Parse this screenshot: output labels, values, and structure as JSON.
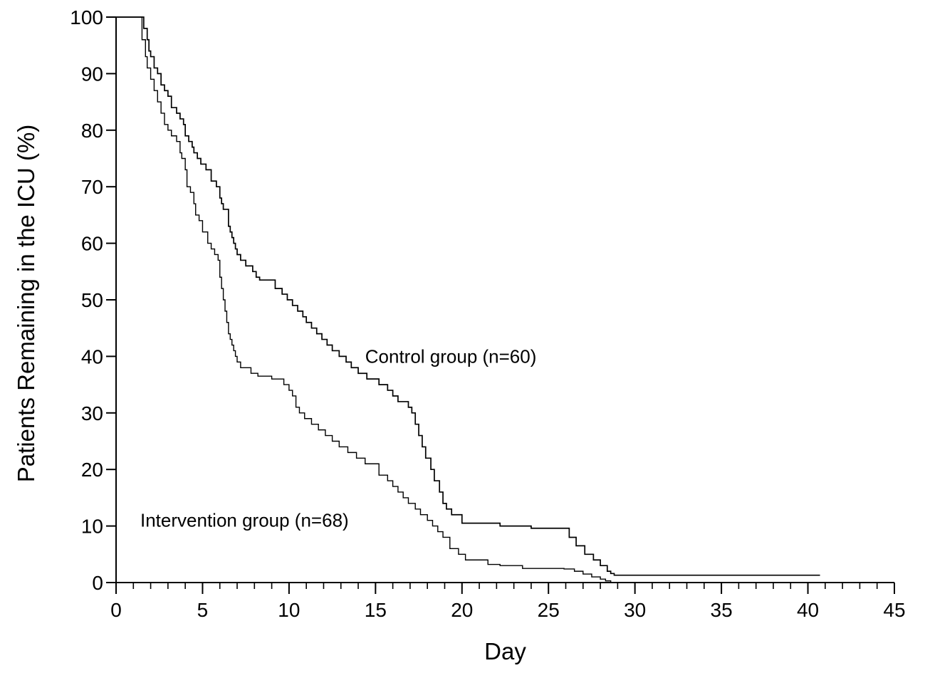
{
  "chart_data": {
    "type": "line",
    "title": "",
    "xlabel": "Day",
    "ylabel": "Patients Remaining in the ICU (%)",
    "xlim": [
      0,
      45
    ],
    "ylim": [
      0,
      100
    ],
    "x_ticks": [
      0,
      5,
      10,
      15,
      20,
      25,
      30,
      35,
      40,
      45
    ],
    "x_minor_step": 1,
    "y_ticks": [
      0,
      10,
      20,
      30,
      40,
      50,
      60,
      70,
      80,
      90,
      100
    ],
    "grid": false,
    "legend": "none",
    "step": "post",
    "annotations": [
      {
        "text": "Control group (n=60)",
        "x": 14.4,
        "y": 40
      },
      {
        "text": "Intervention group (n=68)",
        "x": 1.4,
        "y": 11
      }
    ],
    "series": [
      {
        "x": [
          0,
          1.6,
          1.8,
          1.9,
          2.0,
          2.2,
          2.4,
          2.6,
          2.8,
          3.0,
          3.2,
          3.5,
          3.7,
          3.9,
          4.0,
          4.2,
          4.4,
          4.5,
          4.7,
          4.9,
          5.2,
          5.5,
          5.8,
          6.0,
          6.1,
          6.2,
          6.5,
          6.6,
          6.7,
          6.8,
          6.9,
          7.0,
          7.2,
          7.5,
          7.9,
          8.1,
          8.3,
          9.2,
          9.6,
          9.9,
          10.2,
          10.5,
          10.8,
          11.0,
          11.3,
          11.6,
          11.9,
          12.2,
          12.5,
          12.9,
          13.3,
          13.6,
          14.0,
          14.5,
          15.2,
          15.7,
          16.0,
          16.3,
          16.9,
          17.1,
          17.3,
          17.5,
          17.7,
          17.9,
          18.2,
          18.4,
          18.7,
          18.9,
          19.1,
          19.4,
          20.0,
          20.5,
          21.2,
          22.2,
          24.0,
          25.5,
          26.2,
          26.6,
          27.1,
          27.6,
          28.0,
          28.4,
          28.6,
          28.8,
          40.7
        ],
        "y": [
          100,
          98,
          96,
          94,
          93,
          91,
          90,
          88,
          87,
          86,
          84,
          83,
          82,
          81,
          79,
          78,
          77,
          76,
          75,
          74,
          73,
          71,
          70,
          68,
          67,
          66,
          63,
          62,
          61,
          60,
          59,
          58,
          57,
          56,
          55,
          54,
          53.5,
          52,
          51,
          50,
          49,
          48,
          47,
          46,
          45,
          44,
          43,
          42,
          41,
          40,
          39,
          38,
          37,
          36,
          35,
          34,
          33,
          32,
          31,
          30,
          28,
          26,
          24,
          22,
          20,
          18,
          16,
          14,
          13,
          12,
          10.5,
          10.5,
          10.5,
          10,
          9.6,
          9.6,
          8,
          6.5,
          5,
          4,
          3,
          2,
          1.6,
          1.3,
          1.3
        ]
      },
      {
        "x": [
          0,
          1.5,
          1.7,
          1.8,
          2.0,
          2.2,
          2.4,
          2.6,
          2.8,
          3.0,
          3.2,
          3.5,
          3.7,
          3.8,
          4.0,
          4.1,
          4.3,
          4.5,
          4.6,
          4.8,
          5.0,
          5.3,
          5.5,
          5.7,
          5.9,
          6.0,
          6.1,
          6.2,
          6.3,
          6.4,
          6.5,
          6.6,
          6.7,
          6.8,
          6.9,
          7.0,
          7.2,
          7.5,
          7.8,
          8.0,
          8.2,
          8.5,
          9.0,
          9.7,
          10.0,
          10.2,
          10.4,
          10.6,
          10.9,
          11.3,
          11.7,
          12.1,
          12.5,
          12.9,
          13.4,
          13.9,
          14.4,
          14.8,
          15.2,
          15.7,
          16.0,
          16.3,
          16.6,
          16.9,
          17.3,
          17.6,
          18.0,
          18.3,
          18.6,
          18.9,
          19.3,
          19.8,
          20.2,
          21.5,
          22.2,
          23.5,
          25.0,
          25.9,
          26.5,
          27.0,
          27.5,
          28.0,
          28.3,
          28.6
        ],
        "y": [
          100,
          96,
          93,
          91,
          89,
          87,
          85,
          83,
          81,
          80,
          79,
          78,
          76,
          75,
          73,
          70,
          69,
          67,
          65,
          64,
          62,
          60,
          59,
          58,
          57,
          54,
          52,
          50,
          48,
          46,
          44,
          43,
          42,
          41,
          40,
          39,
          38,
          38,
          37,
          37,
          36.5,
          36.5,
          36,
          35,
          34,
          33,
          31,
          30,
          29,
          28,
          27,
          26,
          25,
          24,
          23,
          22,
          21,
          21,
          19,
          18,
          17,
          16,
          15,
          14,
          13,
          12,
          11,
          10,
          9,
          8,
          6,
          5,
          4,
          3.2,
          3,
          2.5,
          2.5,
          2.4,
          2,
          1.5,
          1,
          0.6,
          0.3,
          0
        ]
      }
    ]
  }
}
